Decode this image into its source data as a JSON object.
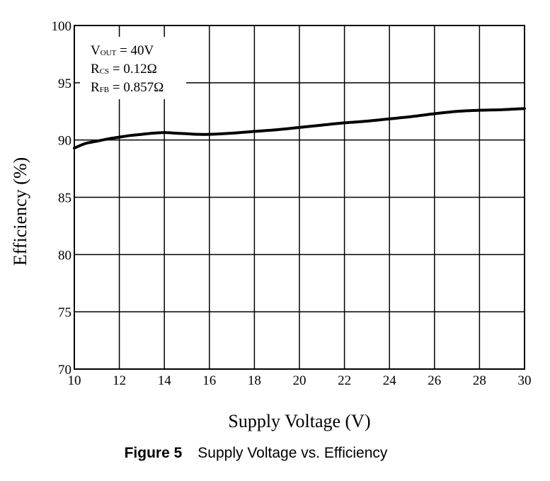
{
  "chart_data": {
    "type": "line",
    "title": "",
    "xlabel": "Supply Voltage (V)",
    "ylabel": "Efficiency (%)",
    "xlim": [
      10,
      30
    ],
    "ylim": [
      70,
      100
    ],
    "grid": true,
    "x_ticks": [
      10,
      12,
      14,
      16,
      18,
      20,
      22,
      24,
      26,
      28,
      30
    ],
    "y_ticks": [
      70,
      75,
      80,
      85,
      90,
      95,
      100
    ],
    "series": [
      {
        "x": [
          10,
          10.5,
          11,
          11.5,
          12,
          12.5,
          13,
          13.5,
          14,
          14.5,
          15,
          15.5,
          16,
          17,
          18,
          19,
          20,
          21,
          22,
          23,
          24,
          25,
          26,
          27,
          28,
          29,
          30
        ],
        "y": [
          89.3,
          89.7,
          89.9,
          90.1,
          90.25,
          90.4,
          90.5,
          90.6,
          90.65,
          90.6,
          90.55,
          90.5,
          90.5,
          90.6,
          90.75,
          90.9,
          91.1,
          91.3,
          91.5,
          91.65,
          91.85,
          92.05,
          92.3,
          92.5,
          92.6,
          92.65,
          92.75
        ],
        "color": "#000000"
      }
    ],
    "annotations": [
      {
        "main": "V",
        "sub": "OUT",
        "rest": " = 40V"
      },
      {
        "main": "R",
        "sub": "CS",
        "rest": " = 0.12Ω"
      },
      {
        "main": "R",
        "sub": "FB",
        "rest": " = 0.857Ω"
      }
    ]
  },
  "caption": {
    "label": "Figure 5",
    "text": "Supply Voltage vs. Efficiency"
  }
}
